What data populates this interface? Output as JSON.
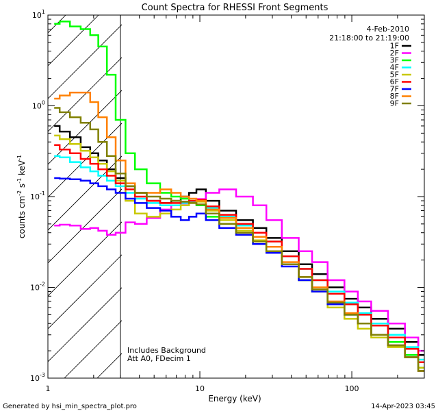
{
  "chart_data": {
    "type": "line",
    "title": "Count Spectra for RHESSI Front Segments",
    "xlabel": "Energy (keV)",
    "ylabel": "counts cm",
    "ylabel_parts": {
      "sup1": "-2",
      "s": " s",
      "sup2": "-1",
      "kev": " keV",
      "sup3": "-1"
    },
    "x_scale": "log",
    "y_scale": "log",
    "xlim": [
      1,
      300
    ],
    "ylim": [
      0.001,
      10
    ],
    "x_ticks": [
      {
        "v": 1,
        "label": "1"
      },
      {
        "v": 10,
        "label": "10"
      },
      {
        "v": 100,
        "label": "100"
      }
    ],
    "y_ticks": [
      {
        "v": 10,
        "base": "10",
        "exp": "1"
      },
      {
        "v": 1,
        "base": "10",
        "exp": "0"
      },
      {
        "v": 0.1,
        "base": "10",
        "exp": "-1"
      },
      {
        "v": 0.01,
        "base": "10",
        "exp": "-2"
      },
      {
        "v": 0.001,
        "base": "10",
        "exp": "-3"
      }
    ],
    "attenuator_cutoff_keV": 3.0,
    "info": {
      "date": "4-Feb-2010",
      "time_range": "21:18:00 to 21:19:00",
      "note1": "Includes Background",
      "note2": "Att A0, FDecim 1"
    },
    "footer_left": "Generated by hsi_min_spectra_plot.pro",
    "footer_right": "14-Apr-2023 03:45",
    "x": [
      1.1,
      1.3,
      1.5,
      1.8,
      2.0,
      2.3,
      2.6,
      3.0,
      3.5,
      4.0,
      5.0,
      6.0,
      7.0,
      8.0,
      9.0,
      10,
      12,
      15,
      20,
      25,
      30,
      40,
      50,
      60,
      80,
      100,
      120,
      150,
      200,
      250,
      300
    ],
    "series": [
      {
        "name": "1F",
        "color": "#000000",
        "values": [
          0.6,
          0.52,
          0.45,
          0.35,
          0.3,
          0.25,
          0.2,
          0.16,
          0.13,
          0.11,
          0.09,
          0.085,
          0.09,
          0.1,
          0.11,
          0.12,
          0.09,
          0.07,
          0.055,
          0.045,
          0.035,
          0.025,
          0.018,
          0.014,
          0.01,
          0.0075,
          0.006,
          0.0045,
          0.0035,
          0.0025,
          0.0018
        ]
      },
      {
        "name": "2F",
        "color": "#ff00ff",
        "values": [
          0.048,
          0.049,
          0.048,
          0.044,
          0.045,
          0.042,
          0.038,
          0.04,
          0.052,
          0.05,
          0.058,
          0.072,
          0.08,
          0.084,
          0.09,
          0.094,
          0.11,
          0.12,
          0.1,
          0.08,
          0.055,
          0.035,
          0.025,
          0.019,
          0.012,
          0.009,
          0.007,
          0.0055,
          0.004,
          0.0028,
          0.002
        ]
      },
      {
        "name": "3F",
        "color": "#00ff00",
        "values": [
          8.0,
          8.5,
          7.5,
          7.0,
          6.0,
          4.5,
          2.2,
          0.7,
          0.3,
          0.2,
          0.14,
          0.11,
          0.1,
          0.095,
          0.09,
          0.08,
          0.06,
          0.05,
          0.04,
          0.03,
          0.025,
          0.018,
          0.012,
          0.009,
          0.0065,
          0.005,
          0.004,
          0.003,
          0.0025,
          0.0018,
          0.0013
        ]
      },
      {
        "name": "4F",
        "color": "#00ffff",
        "values": [
          0.28,
          0.27,
          0.24,
          0.21,
          0.19,
          0.17,
          0.15,
          0.13,
          0.11,
          0.095,
          0.085,
          0.08,
          0.08,
          0.085,
          0.088,
          0.09,
          0.075,
          0.06,
          0.048,
          0.04,
          0.032,
          0.022,
          0.016,
          0.012,
          0.009,
          0.0068,
          0.0052,
          0.004,
          0.003,
          0.0022,
          0.0016
        ]
      },
      {
        "name": "5F",
        "color": "#c8c800",
        "values": [
          0.47,
          0.43,
          0.38,
          0.32,
          0.27,
          0.23,
          0.19,
          0.15,
          0.09,
          0.065,
          0.06,
          0.065,
          0.072,
          0.08,
          0.085,
          0.088,
          0.07,
          0.055,
          0.042,
          0.033,
          0.025,
          0.018,
          0.012,
          0.009,
          0.006,
          0.0045,
          0.0035,
          0.0028,
          0.0022,
          0.0017,
          0.0013
        ]
      },
      {
        "name": "6F",
        "color": "#ff0000",
        "values": [
          0.37,
          0.33,
          0.3,
          0.26,
          0.23,
          0.2,
          0.17,
          0.14,
          0.12,
          0.1,
          0.09,
          0.085,
          0.085,
          0.088,
          0.09,
          0.092,
          0.078,
          0.063,
          0.05,
          0.04,
          0.032,
          0.022,
          0.016,
          0.012,
          0.0085,
          0.0065,
          0.005,
          0.0038,
          0.0028,
          0.0021,
          0.0015
        ]
      },
      {
        "name": "7F",
        "color": "#0000ff",
        "values": [
          0.16,
          0.158,
          0.155,
          0.15,
          0.14,
          0.13,
          0.12,
          0.11,
          0.095,
          0.085,
          0.075,
          0.07,
          0.06,
          0.055,
          0.06,
          0.065,
          0.055,
          0.045,
          0.038,
          0.03,
          0.024,
          0.017,
          0.012,
          0.009,
          0.0065,
          0.005,
          0.004,
          0.003,
          0.0023,
          0.0017,
          0.0012
        ]
      },
      {
        "name": "8F",
        "color": "#ff8000",
        "values": [
          1.2,
          1.3,
          1.4,
          1.4,
          1.1,
          0.75,
          0.45,
          0.25,
          0.14,
          0.11,
          0.11,
          0.12,
          0.11,
          0.1,
          0.095,
          0.09,
          0.072,
          0.058,
          0.045,
          0.036,
          0.028,
          0.019,
          0.013,
          0.01,
          0.007,
          0.0052,
          0.004,
          0.003,
          0.0023,
          0.0017,
          0.0012
        ]
      },
      {
        "name": "9F",
        "color": "#808000",
        "values": [
          0.95,
          0.85,
          0.75,
          0.65,
          0.55,
          0.4,
          0.28,
          0.18,
          0.13,
          0.11,
          0.1,
          0.095,
          0.09,
          0.088,
          0.085,
          0.082,
          0.065,
          0.05,
          0.04,
          0.032,
          0.025,
          0.018,
          0.013,
          0.0095,
          0.0068,
          0.005,
          0.004,
          0.003,
          0.0023,
          0.0017,
          0.0012
        ]
      }
    ]
  }
}
